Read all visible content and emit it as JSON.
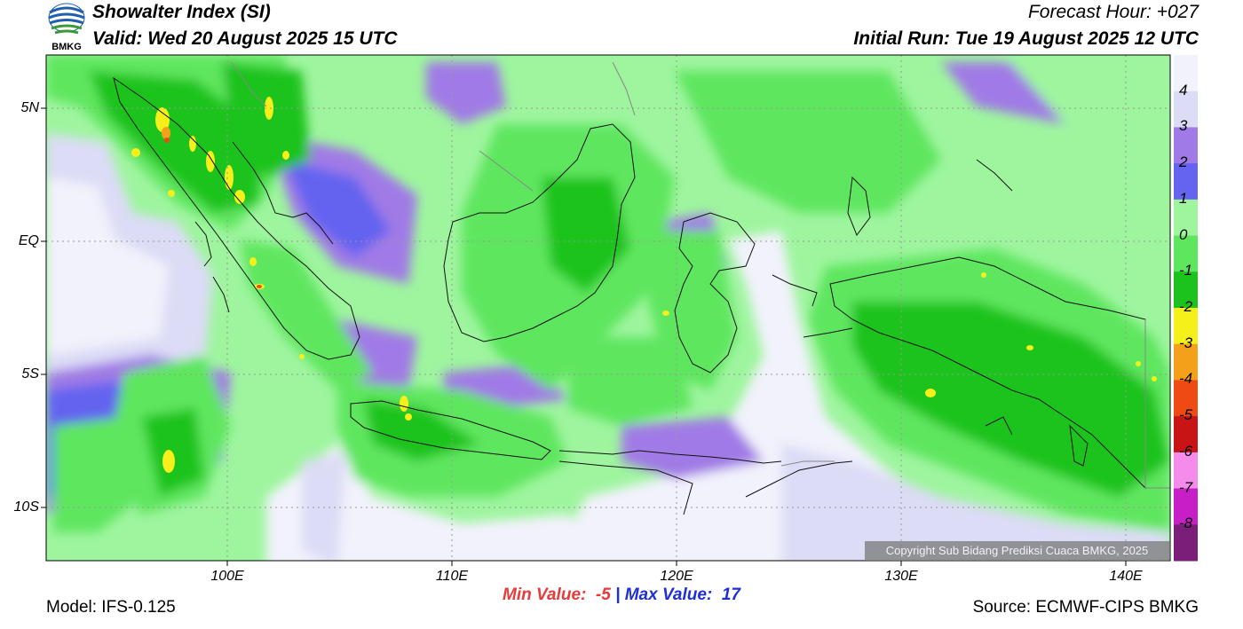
{
  "header": {
    "title": "Showalter Index (SI)",
    "valid": "Valid: Wed 20 August 2025 15 UTC",
    "forecast_hour": "Forecast Hour: +027",
    "initial_run": "Initial Run: Tue 19 August 2025 12 UTC"
  },
  "logo": {
    "text": "BMKG",
    "colors": {
      "blue": "#1f5fae",
      "green": "#3a9a3a"
    }
  },
  "axes": {
    "lat_labels": [
      "5N",
      "EQ",
      "5S",
      "10S"
    ],
    "lon_labels": [
      "100E",
      "110E",
      "120E",
      "130E",
      "140E"
    ]
  },
  "colorbar": {
    "labels": [
      "4",
      "3",
      "2",
      "1",
      "0",
      "-1",
      "-2",
      "-3",
      "-4",
      "-5",
      "-6",
      "-7",
      "-8"
    ],
    "colors": [
      "#f2f2fc",
      "#dcdcf6",
      "#a07ae6",
      "#6464f0",
      "#9ef59e",
      "#5ee65e",
      "#1cc31c",
      "#f5f01a",
      "#f5a01a",
      "#f04a14",
      "#c81414",
      "#f58cec",
      "#c81ec8",
      "#7a1e7a"
    ]
  },
  "stats": {
    "min_label": "Min Value:",
    "min_value": "-5",
    "separator": "|",
    "max_label": "Max Value:",
    "max_value": "17"
  },
  "footer": {
    "model": "Model: IFS-0.125",
    "source": "Source: ECMWF-CIPS BMKG",
    "copyright": "Copyright Sub Bidang Prediksi Cuaca BMKG, 2025"
  }
}
